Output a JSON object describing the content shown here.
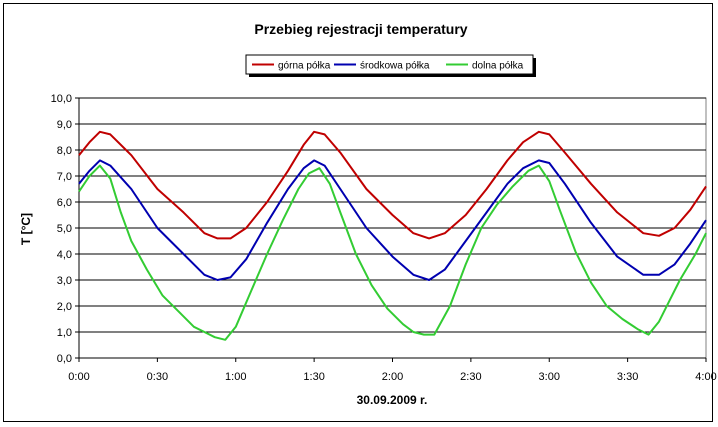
{
  "chart_data": {
    "type": "line",
    "title": "Przebieg rejestracji temperatury",
    "xlabel": "30.09.2009 r.",
    "ylabel": "T [°C]",
    "xlim_minutes": [
      0,
      240
    ],
    "ylim": [
      0,
      10
    ],
    "y_ticks": [
      "0,0",
      "1,0",
      "2,0",
      "3,0",
      "4,0",
      "5,0",
      "6,0",
      "7,0",
      "8,0",
      "9,0",
      "10,0"
    ],
    "x_ticks": [
      "0:00",
      "0:30",
      "1:00",
      "1:30",
      "2:00",
      "2:30",
      "3:00",
      "3:30",
      "4:00"
    ],
    "grid": "horizontal",
    "legend_position": "top",
    "series": [
      {
        "name": "górna półka",
        "color": "#c00000",
        "x": [
          0,
          4,
          8,
          12,
          20,
          30,
          40,
          48,
          53,
          58,
          64,
          72,
          80,
          86,
          90,
          94,
          100,
          110,
          120,
          128,
          134,
          140,
          148,
          156,
          164,
          170,
          176,
          180,
          186,
          196,
          206,
          216,
          222,
          228,
          234,
          240
        ],
        "y": [
          7.8,
          8.3,
          8.7,
          8.6,
          7.8,
          6.5,
          5.6,
          4.8,
          4.6,
          4.6,
          5.0,
          6.0,
          7.2,
          8.2,
          8.7,
          8.6,
          7.9,
          6.5,
          5.5,
          4.8,
          4.6,
          4.8,
          5.5,
          6.5,
          7.6,
          8.3,
          8.7,
          8.6,
          7.9,
          6.7,
          5.6,
          4.8,
          4.7,
          5.0,
          5.7,
          6.6
        ]
      },
      {
        "name": "środkowa półka",
        "color": "#0000b0",
        "x": [
          0,
          4,
          8,
          12,
          20,
          30,
          40,
          48,
          53,
          58,
          64,
          72,
          80,
          86,
          90,
          94,
          100,
          110,
          120,
          128,
          134,
          140,
          148,
          156,
          164,
          170,
          176,
          180,
          186,
          196,
          206,
          216,
          222,
          228,
          234,
          240
        ],
        "y": [
          6.7,
          7.2,
          7.6,
          7.4,
          6.5,
          5.0,
          4.0,
          3.2,
          3.0,
          3.1,
          3.8,
          5.2,
          6.5,
          7.3,
          7.6,
          7.4,
          6.5,
          5.0,
          3.9,
          3.2,
          3.0,
          3.4,
          4.5,
          5.6,
          6.7,
          7.3,
          7.6,
          7.5,
          6.7,
          5.2,
          3.9,
          3.2,
          3.2,
          3.6,
          4.4,
          5.3
        ]
      },
      {
        "name": "dolna półka",
        "color": "#33cc33",
        "x": [
          0,
          4,
          8,
          12,
          16,
          20,
          26,
          32,
          38,
          44,
          48,
          52,
          56,
          60,
          66,
          72,
          78,
          84,
          88,
          92,
          96,
          100,
          106,
          112,
          118,
          124,
          128,
          132,
          136,
          142,
          148,
          154,
          160,
          166,
          172,
          176,
          180,
          184,
          190,
          196,
          202,
          208,
          214,
          218,
          222,
          226,
          230,
          236,
          240
        ],
        "y": [
          6.4,
          7.0,
          7.4,
          6.9,
          5.6,
          4.5,
          3.4,
          2.4,
          1.8,
          1.2,
          1.0,
          0.8,
          0.7,
          1.2,
          2.6,
          4.0,
          5.3,
          6.5,
          7.1,
          7.3,
          6.7,
          5.6,
          4.0,
          2.8,
          1.9,
          1.3,
          1.0,
          0.9,
          0.9,
          2.0,
          3.6,
          5.0,
          5.9,
          6.6,
          7.2,
          7.4,
          6.8,
          5.7,
          4.1,
          2.9,
          2.0,
          1.5,
          1.1,
          0.9,
          1.4,
          2.2,
          3.0,
          4.0,
          4.8
        ]
      }
    ]
  }
}
